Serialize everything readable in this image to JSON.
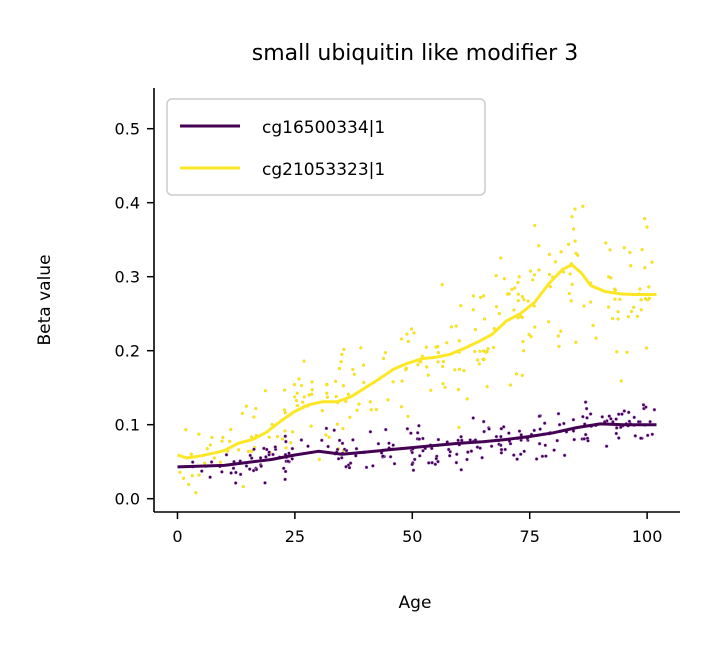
{
  "chart_data": {
    "type": "scatter",
    "title": "small ubiquitin like modifier 3",
    "xlabel": "Age",
    "ylabel": "Beta value",
    "xlim": [
      -5,
      107
    ],
    "ylim": [
      -0.018,
      0.555
    ],
    "xticks": [
      0,
      25,
      50,
      75,
      100
    ],
    "yticks": [
      0.0,
      0.1,
      0.2,
      0.3,
      0.4,
      0.5
    ],
    "xtick_labels": [
      "0",
      "25",
      "50",
      "75",
      "100"
    ],
    "ytick_labels": [
      "0.0",
      "0.1",
      "0.2",
      "0.3",
      "0.4",
      "0.5"
    ],
    "legend_placement": "top-left",
    "grid": false,
    "series": [
      {
        "name": "cg16500334|1",
        "color": "#440154",
        "trend": {
          "x": [
            0,
            5,
            10,
            15,
            20,
            25,
            30,
            35,
            40,
            45,
            50,
            55,
            60,
            65,
            70,
            75,
            80,
            85,
            90,
            95,
            100,
            102
          ],
          "y": [
            0.043,
            0.044,
            0.045,
            0.049,
            0.053,
            0.059,
            0.064,
            0.06,
            0.063,
            0.066,
            0.069,
            0.072,
            0.075,
            0.077,
            0.08,
            0.084,
            0.089,
            0.096,
            0.101,
            0.1,
            0.1,
            0.1
          ]
        }
      },
      {
        "name": "cg21053323|1",
        "color": "#fde725",
        "trend": {
          "x": [
            0,
            2,
            5,
            8,
            10,
            13,
            16,
            19,
            22,
            25,
            28,
            31,
            34,
            37,
            40,
            43,
            46,
            49,
            52,
            55,
            58,
            61,
            64,
            67,
            70,
            73,
            76,
            79,
            82,
            84,
            86,
            88,
            91,
            94,
            97,
            100,
            102
          ],
          "y": [
            0.059,
            0.055,
            0.058,
            0.062,
            0.065,
            0.075,
            0.08,
            0.09,
            0.105,
            0.118,
            0.127,
            0.131,
            0.131,
            0.138,
            0.15,
            0.162,
            0.175,
            0.183,
            0.189,
            0.191,
            0.195,
            0.203,
            0.212,
            0.222,
            0.24,
            0.25,
            0.265,
            0.29,
            0.31,
            0.316,
            0.305,
            0.288,
            0.28,
            0.277,
            0.276,
            0.276,
            0.276
          ]
        }
      }
    ]
  }
}
